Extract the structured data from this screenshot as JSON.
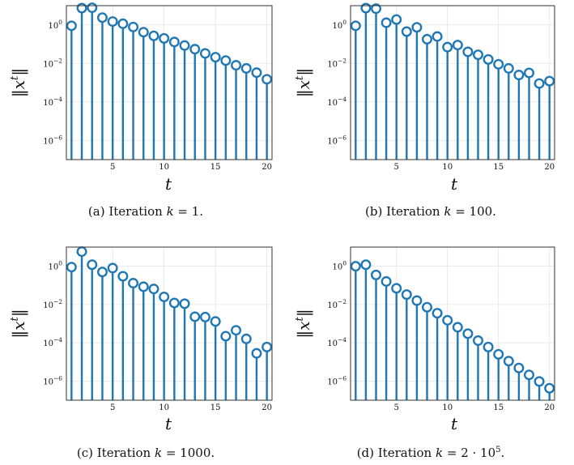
{
  "chart_data": [
    {
      "type": "stem",
      "caption": "(a) Iteration k = 1.",
      "xlabel": "t",
      "ylabel": "‖x^t‖",
      "xlim": [
        0.5,
        20.5
      ],
      "ylim": [
        1e-07,
        10
      ],
      "yscale": "log",
      "grid": true,
      "xticks": [
        5,
        10,
        15,
        20
      ],
      "yticks": [
        1e-06,
        0.0001,
        0.01,
        1
      ],
      "ytick_labels": [
        "10^-6",
        "10^-4",
        "10^-2",
        "10^0"
      ],
      "x": [
        1,
        2,
        3,
        4,
        5,
        6,
        7,
        8,
        9,
        10,
        11,
        12,
        13,
        14,
        15,
        16,
        17,
        18,
        19,
        20
      ],
      "values": [
        0.9,
        7.5,
        7.8,
        2.4,
        1.5,
        1.15,
        0.78,
        0.42,
        0.27,
        0.2,
        0.13,
        0.085,
        0.055,
        0.033,
        0.021,
        0.014,
        0.008,
        0.0055,
        0.0033,
        0.0015
      ]
    },
    {
      "type": "stem",
      "caption": "(b) Iteration k = 100.",
      "xlabel": "t",
      "ylabel": "‖x^t‖",
      "xlim": [
        0.5,
        20.5
      ],
      "ylim": [
        1e-07,
        10
      ],
      "yscale": "log",
      "grid": true,
      "xticks": [
        5,
        10,
        15,
        20
      ],
      "yticks": [
        1e-06,
        0.0001,
        0.01,
        1
      ],
      "ytick_labels": [
        "10^-6",
        "10^-4",
        "10^-2",
        "10^0"
      ],
      "x": [
        1,
        2,
        3,
        4,
        5,
        6,
        7,
        8,
        9,
        10,
        11,
        12,
        13,
        14,
        15,
        16,
        17,
        18,
        19,
        20
      ],
      "values": [
        0.9,
        7.5,
        7.0,
        1.3,
        1.9,
        0.45,
        0.75,
        0.18,
        0.25,
        0.07,
        0.09,
        0.04,
        0.028,
        0.016,
        0.009,
        0.0055,
        0.0025,
        0.0032,
        0.0009,
        0.0012
      ]
    },
    {
      "type": "stem",
      "caption": "(c) Iteration k = 1000.",
      "xlabel": "t",
      "ylabel": "‖x^t‖",
      "xlim": [
        0.5,
        20.5
      ],
      "ylim": [
        1e-07,
        10
      ],
      "yscale": "log",
      "grid": true,
      "xticks": [
        5,
        10,
        15,
        20
      ],
      "yticks": [
        1e-06,
        0.0001,
        0.01,
        1
      ],
      "ytick_labels": [
        "10^-6",
        "10^-4",
        "10^-2",
        "10^0"
      ],
      "x": [
        1,
        2,
        3,
        4,
        5,
        6,
        7,
        8,
        9,
        10,
        11,
        12,
        13,
        14,
        15,
        16,
        17,
        18,
        19,
        20
      ],
      "values": [
        0.9,
        5.8,
        1.2,
        0.5,
        0.8,
        0.3,
        0.13,
        0.085,
        0.065,
        0.025,
        0.012,
        0.011,
        0.0023,
        0.0022,
        0.0013,
        0.00022,
        0.00045,
        0.00016,
        2.8e-05,
        6e-05
      ]
    },
    {
      "type": "stem",
      "caption": "(d) Iteration k = 2 · 10^5.",
      "xlabel": "t",
      "ylabel": "‖x^t‖",
      "xlim": [
        0.5,
        20.5
      ],
      "ylim": [
        1e-07,
        10
      ],
      "yscale": "log",
      "grid": true,
      "xticks": [
        5,
        10,
        15,
        20
      ],
      "yticks": [
        1e-06,
        0.0001,
        0.01,
        1
      ],
      "ytick_labels": [
        "10^-6",
        "10^-4",
        "10^-2",
        "10^0"
      ],
      "x": [
        1,
        2,
        3,
        4,
        5,
        6,
        7,
        8,
        9,
        10,
        11,
        12,
        13,
        14,
        15,
        16,
        17,
        18,
        19,
        20
      ],
      "values": [
        1.0,
        1.2,
        0.35,
        0.16,
        0.07,
        0.033,
        0.016,
        0.0072,
        0.0035,
        0.0015,
        0.00065,
        0.0003,
        0.00013,
        6e-05,
        2.5e-05,
        1.1e-05,
        4.8e-06,
        2.1e-06,
        9.5e-07,
        4.2e-07
      ]
    }
  ]
}
